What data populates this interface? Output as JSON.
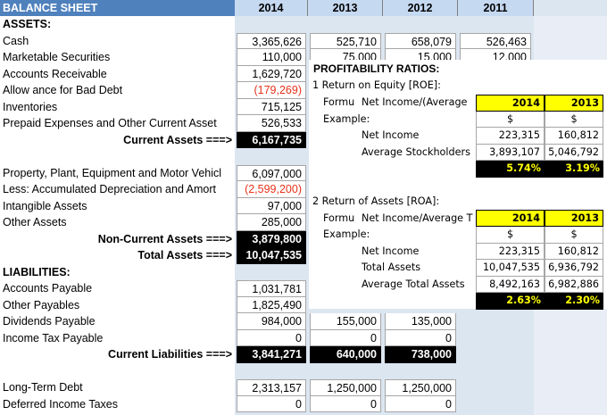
{
  "sheet": {
    "title": "BALANCE SHEET",
    "years": [
      "2014",
      "2013",
      "2012",
      "2011"
    ]
  },
  "assets": {
    "header": "ASSETS:",
    "cash": {
      "label": "Cash",
      "v2014": "3,365,626",
      "v2013": "525,710",
      "v2012": "658,079",
      "v2011": "526,463"
    },
    "securities": {
      "label": "Marketable Securities",
      "v2014": "110,000",
      "v2013": "75,000",
      "v2012": "15,000",
      "v2011": "12,000"
    },
    "receivable": {
      "label": "Accounts Receivable",
      "v2014": "1,629,720"
    },
    "bad_debt": {
      "label": "Allow ance for Bad Debt",
      "v2014": "(179,269)"
    },
    "inventories": {
      "label": "Inventories",
      "v2014": "715,125"
    },
    "prepaid": {
      "label": "Prepaid Expenses and Other Current Asset",
      "v2014": "526,533"
    },
    "current_assets": {
      "label": "Current Assets ===>",
      "v2014": "6,167,735"
    },
    "ppe": {
      "label": "Property, Plant, Equipment and Motor Vehicl",
      "v2014": "6,097,000"
    },
    "depreciation": {
      "label": "Less: Accumulated Depreciation and Amort",
      "v2014": "(2,599,200)"
    },
    "intangible": {
      "label": "Intangible Assets",
      "v2014": "97,000"
    },
    "other_assets": {
      "label": "Other Assets",
      "v2014": "285,000"
    },
    "non_current": {
      "label": "Non-Current Assets ===>",
      "v2014": "3,879,800"
    },
    "total_assets": {
      "label": "Total Assets ===>",
      "v2014": "10,047,535"
    }
  },
  "liabilities": {
    "header": "LIABILITIES:",
    "payable": {
      "label": "Accounts Payable",
      "v2014": "1,031,781"
    },
    "other_payables": {
      "label": "Other Payables",
      "v2014": "1,825,490"
    },
    "dividends": {
      "label": "Dividends Payable",
      "v2014": "984,000",
      "v2013": "155,000",
      "v2012": "135,000"
    },
    "income_tax": {
      "label": "Income Tax Payable",
      "v2014": "0",
      "v2013": "0",
      "v2012": "0"
    },
    "current_liab": {
      "label": "Current Liabilities ===>",
      "v2014": "3,841,271",
      "v2013": "640,000",
      "v2012": "738,000"
    },
    "long_term": {
      "label": "Long-Term Debt",
      "v2014": "2,313,157",
      "v2013": "1,250,000",
      "v2012": "1,250,000"
    },
    "deferred": {
      "label": "Deferred Income Taxes",
      "v2014": "0",
      "v2013": "0",
      "v2012": "0"
    }
  },
  "ratios": {
    "title": "PROFITABILITY RATIOS:",
    "roe": {
      "heading": "1  Return on Equity [ROE]:",
      "formula_label": "Formu",
      "formula": "Net Income/(Average",
      "example": "Example:",
      "y2014": "2014",
      "y2013": "2013",
      "cur": "$",
      "net_income_label": "Net Income",
      "net_income_2014": "223,315",
      "net_income_2013": "160,812",
      "avg_label": "Average Stockholders",
      "avg_2014": "3,893,107",
      "avg_2013": "5,046,792",
      "pct_2014": "5.74%",
      "pct_2013": "3.19%"
    },
    "roa": {
      "heading": "2  Return of Assets [ROA]:",
      "formula_label": "Formu",
      "formula": "Net Income/Average T",
      "example": "Example:",
      "y2014": "2014",
      "y2013": "2013",
      "cur": "$",
      "net_income_label": "Net Income",
      "net_income_2014": "223,315",
      "net_income_2013": "160,812",
      "total_label": "Total Assets",
      "total_2014": "10,047,535",
      "total_2013": "6,936,792",
      "avg_label": "Average Total Assets",
      "avg_2014": "8,492,163",
      "avg_2013": "6,982,886",
      "pct_2014": "2.63%",
      "pct_2013": "2.30%"
    }
  }
}
